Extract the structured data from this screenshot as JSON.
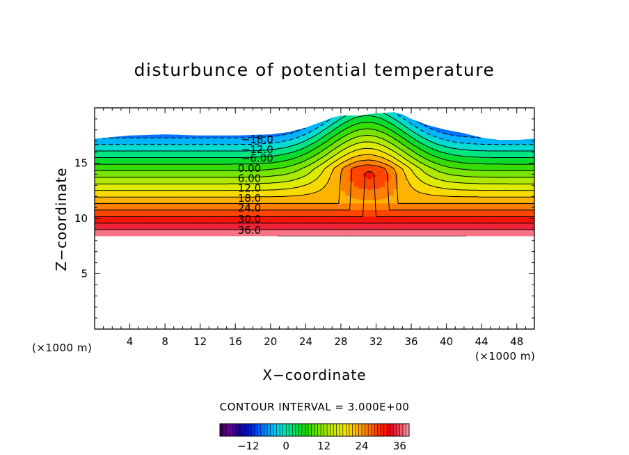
{
  "chart_data": {
    "type": "heatmap",
    "title": "disturbunce of potential temperature",
    "xlabel": "X−coordinate",
    "ylabel": "Z−coordinate",
    "x_unit": "(×1000 m)",
    "z_unit": "(×1000 m)",
    "xlim": [
      0,
      50
    ],
    "ylim": [
      0,
      20
    ],
    "x_ticks": [
      4,
      8,
      12,
      16,
      20,
      24,
      28,
      32,
      36,
      40,
      44,
      48
    ],
    "y_ticks": [
      5,
      10,
      15
    ],
    "contour_interval_text": "CONTOUR INTERVAL = 3.000E+00",
    "contour_interval": 3.0,
    "value_range": [
      -18,
      39
    ],
    "data_bottom_z": 8.4,
    "top_boundary": {
      "x": [
        0,
        4,
        8,
        12,
        16,
        20,
        22,
        24,
        26,
        27,
        28,
        30,
        32,
        34,
        35,
        36,
        38,
        40,
        42,
        44,
        46,
        48,
        50
      ],
      "z": [
        17.2,
        17.5,
        17.6,
        17.5,
        17.5,
        17.6,
        17.8,
        18.2,
        18.8,
        19.1,
        19.3,
        19.3,
        19.5,
        19.6,
        19.4,
        19.0,
        18.4,
        18.0,
        17.7,
        17.3,
        17.1,
        17.1,
        17.2
      ]
    },
    "contour_labels": [
      {
        "value": -18,
        "text": "−18.0",
        "x": 18.5,
        "z": 17.1
      },
      {
        "value": -12,
        "text": "−12.0",
        "x": 18.5,
        "z": 16.2
      },
      {
        "value": -6,
        "text": "−6.00",
        "x": 18.5,
        "z": 15.4
      },
      {
        "value": 0,
        "text": "0.00",
        "x": 17.6,
        "z": 14.5
      },
      {
        "value": 6,
        "text": "6.00",
        "x": 17.6,
        "z": 13.6
      },
      {
        "value": 12,
        "text": "12.0",
        "x": 17.6,
        "z": 12.7
      },
      {
        "value": 18,
        "text": "18.0",
        "x": 17.6,
        "z": 11.8
      },
      {
        "value": 24,
        "text": "24.0",
        "x": 17.6,
        "z": 10.9
      },
      {
        "value": 30,
        "text": "30.0",
        "x": 17.6,
        "z": 9.9
      },
      {
        "value": 36,
        "text": "36.0",
        "x": 17.6,
        "z": 8.9
      }
    ],
    "colorbar": {
      "ticks": [
        -12,
        0,
        12,
        24,
        36
      ],
      "tick_labels": [
        "−12",
        "0",
        "12",
        "24",
        "36"
      ],
      "range": [
        -21,
        39
      ]
    }
  }
}
